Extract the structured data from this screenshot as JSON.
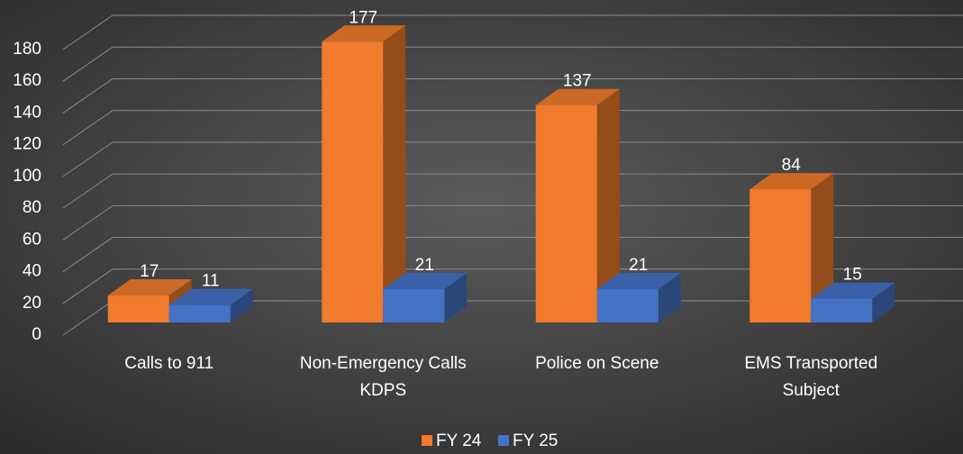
{
  "chart_data": {
    "type": "bar3d",
    "categories": [
      "Calls to 911",
      [
        "Non-Emergency Calls",
        "KDPS"
      ],
      "Police on Scene",
      [
        "EMS Transported",
        "Subject"
      ]
    ],
    "series": [
      {
        "name": "FY 24",
        "color": "#f07b2c",
        "values": [
          17,
          177,
          137,
          84
        ]
      },
      {
        "name": "FY 25",
        "color": "#4472c4",
        "values": [
          11,
          21,
          21,
          15
        ]
      }
    ],
    "ylim": [
      0,
      180
    ],
    "yticks": [
      0,
      20,
      40,
      60,
      80,
      100,
      120,
      140,
      160,
      180
    ],
    "grid": true,
    "legend": "bottom"
  }
}
